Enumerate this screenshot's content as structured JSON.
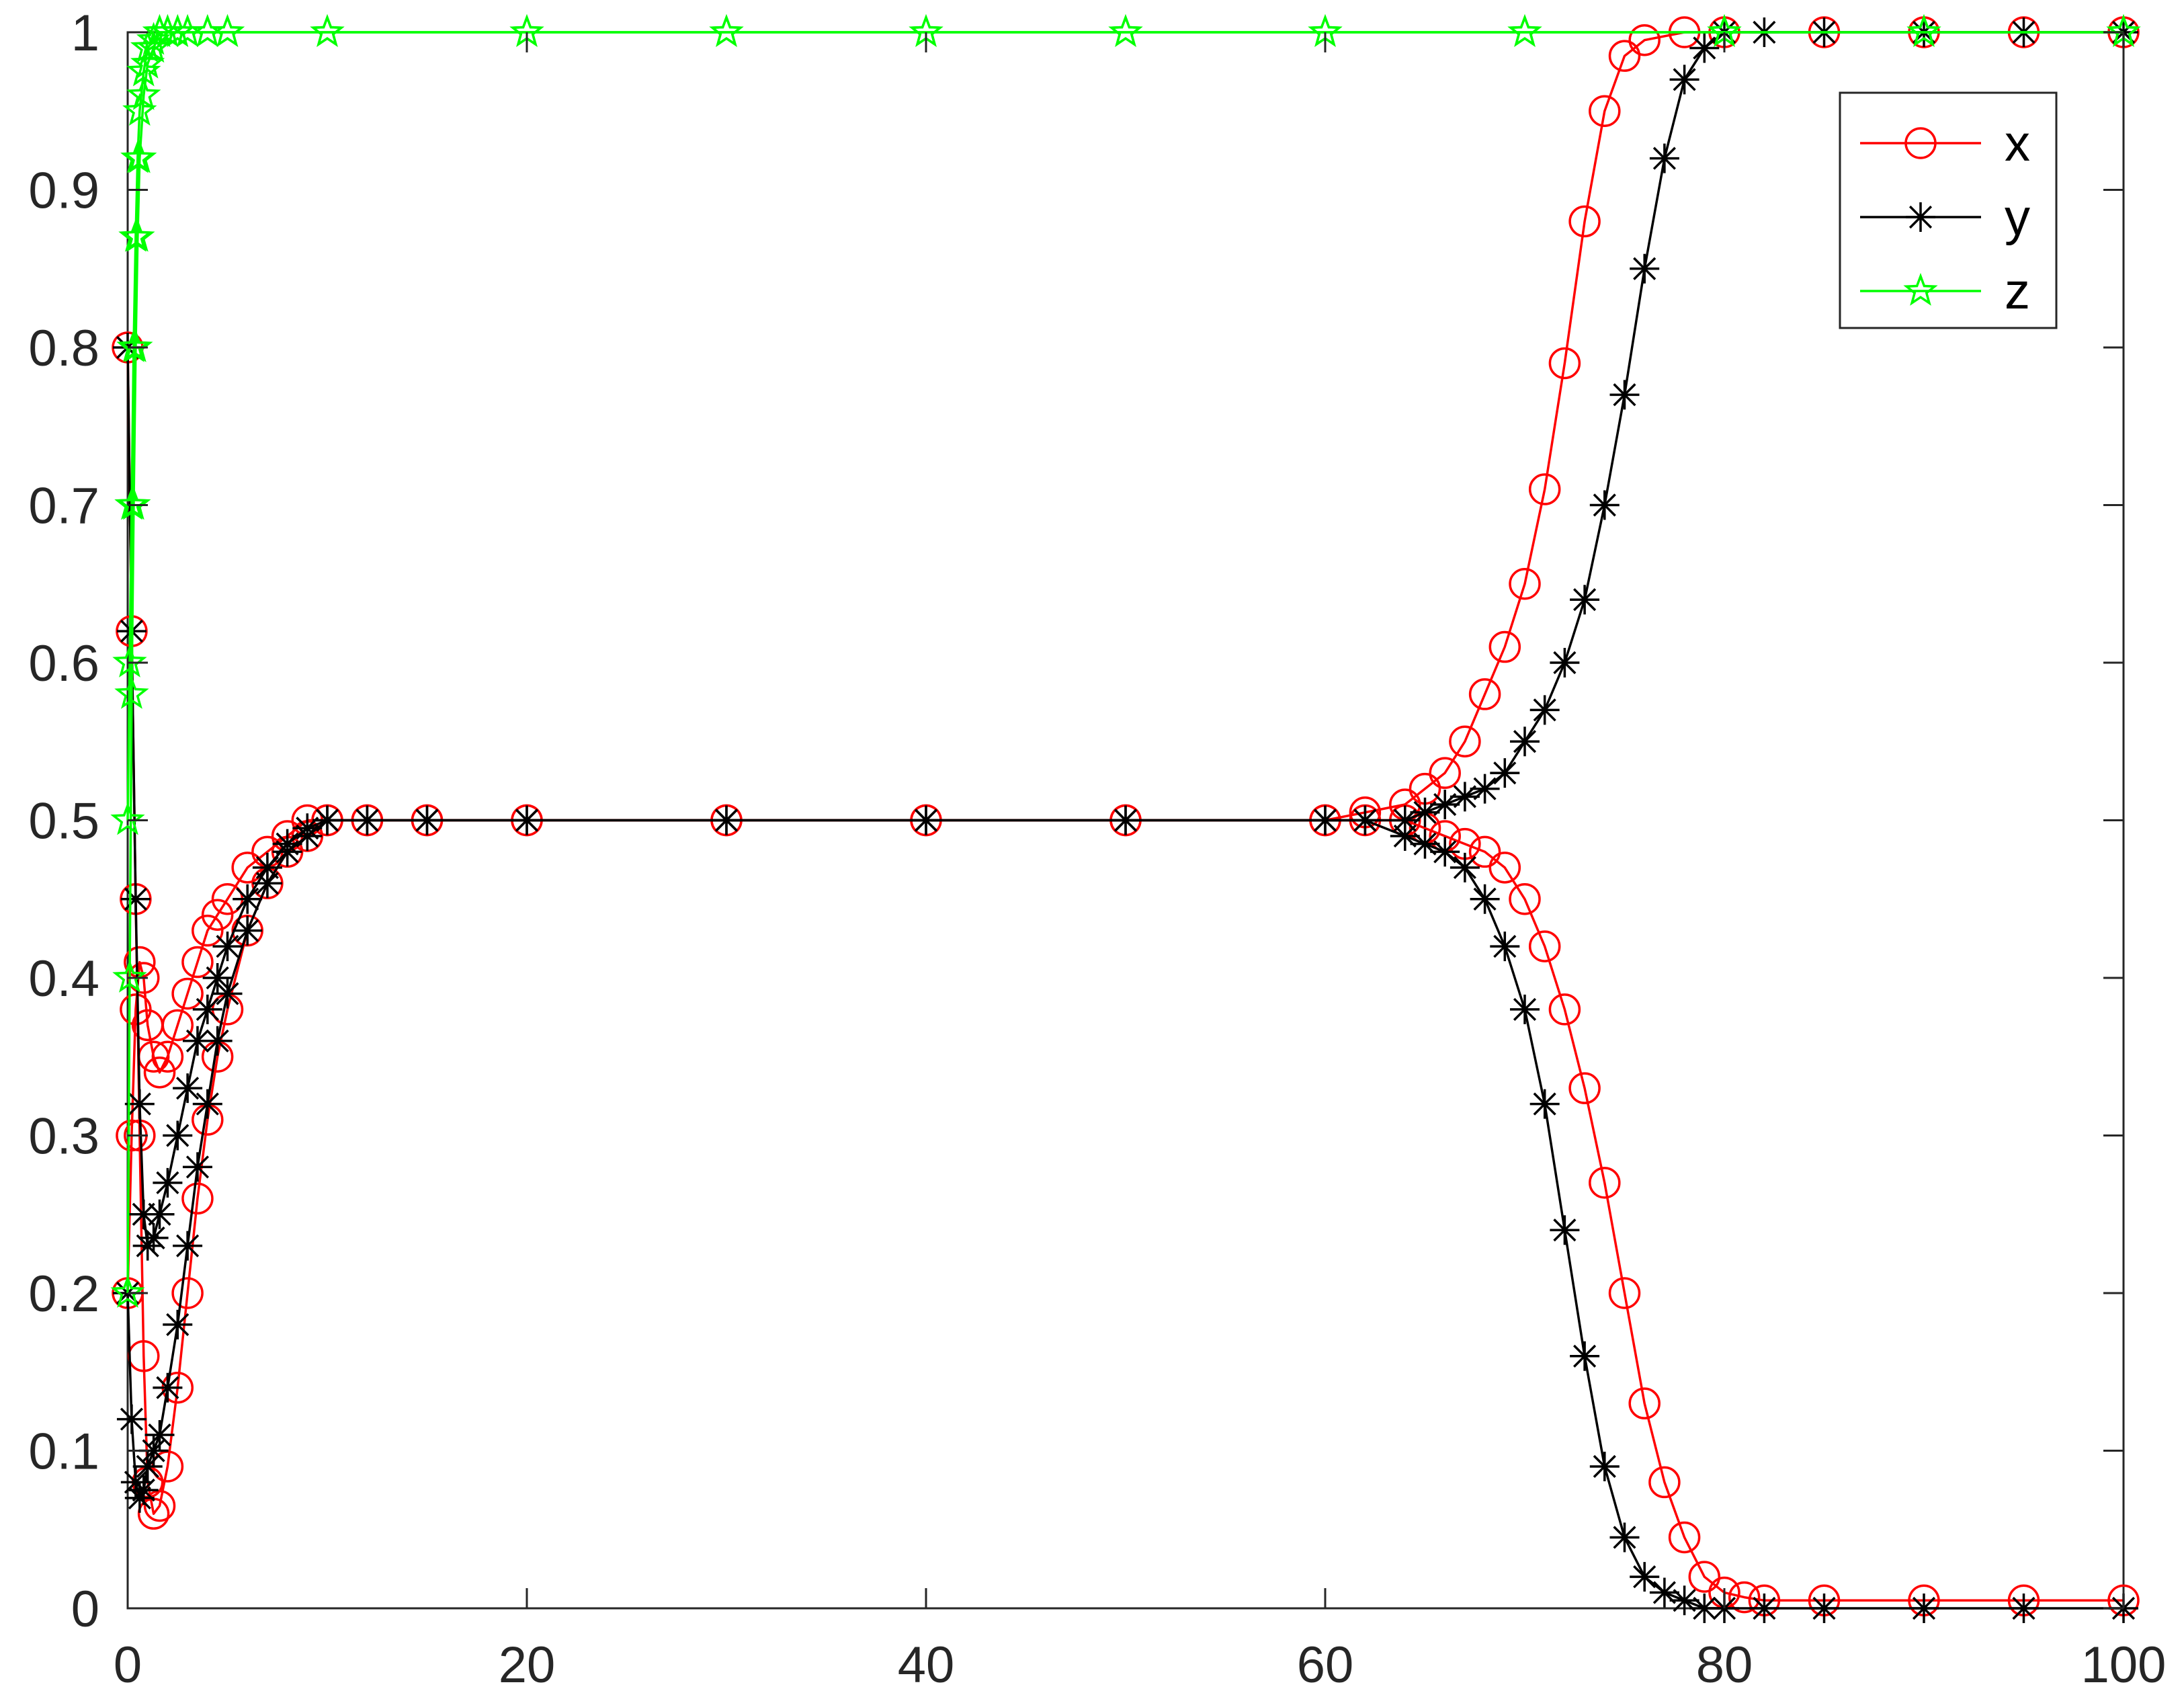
{
  "chart_data": {
    "type": "line",
    "title": "",
    "xlabel": "",
    "ylabel": "",
    "xlim": [
      0,
      100
    ],
    "ylim": [
      0,
      1
    ],
    "xticks": [
      0,
      20,
      40,
      60,
      80,
      100
    ],
    "yticks": [
      0,
      0.1,
      0.2,
      0.3,
      0.4,
      0.5,
      0.6,
      0.7,
      0.8,
      0.9,
      1
    ],
    "grid": false,
    "legend": "top-right",
    "series": [
      {
        "name": "x",
        "color": "#ff0000",
        "marker": "circle",
        "branches": [
          {
            "x": [
              0,
              0.2,
              0.4,
              0.6,
              0.8,
              1,
              1.3,
              1.6,
              2,
              2.5,
              3,
              3.5,
              4,
              4.5,
              5,
              6,
              7,
              8,
              9,
              10,
              12,
              15,
              20,
              30,
              40,
              50,
              60,
              62,
              64,
              65,
              66,
              67,
              68,
              69,
              70,
              71,
              72,
              73,
              74,
              75,
              76,
              78,
              80,
              85,
              90,
              95,
              100
            ],
            "y": [
              0.8,
              0.62,
              0.45,
              0.3,
              0.16,
              0.08,
              0.06,
              0.065,
              0.09,
              0.14,
              0.2,
              0.26,
              0.31,
              0.35,
              0.38,
              0.43,
              0.46,
              0.48,
              0.49,
              0.5,
              0.5,
              0.5,
              0.5,
              0.5,
              0.5,
              0.5,
              0.5,
              0.505,
              0.51,
              0.52,
              0.53,
              0.55,
              0.58,
              0.61,
              0.65,
              0.71,
              0.79,
              0.88,
              0.95,
              0.985,
              0.995,
              1,
              1,
              1,
              1,
              1,
              1
            ]
          },
          {
            "x": [
              0,
              0.2,
              0.4,
              0.6,
              0.8,
              1,
              1.3,
              1.6,
              2,
              2.5,
              3,
              3.5,
              4,
              4.5,
              5,
              6,
              7,
              8,
              9,
              10,
              12,
              15,
              20,
              30,
              40,
              50,
              60,
              62,
              64,
              65,
              66,
              67,
              68,
              69,
              70,
              71,
              72,
              73,
              74,
              75,
              76,
              77,
              78,
              79,
              80,
              81,
              82,
              85,
              90,
              95,
              100
            ],
            "y": [
              0.2,
              0.3,
              0.38,
              0.41,
              0.4,
              0.37,
              0.35,
              0.34,
              0.35,
              0.37,
              0.39,
              0.41,
              0.43,
              0.44,
              0.45,
              0.47,
              0.48,
              0.49,
              0.5,
              0.5,
              0.5,
              0.5,
              0.5,
              0.5,
              0.5,
              0.5,
              0.5,
              0.5,
              0.5,
              0.495,
              0.49,
              0.485,
              0.48,
              0.47,
              0.45,
              0.42,
              0.38,
              0.33,
              0.27,
              0.2,
              0.13,
              0.08,
              0.045,
              0.02,
              0.01,
              0.007,
              0.005,
              0.005,
              0.005,
              0.005,
              0.005
            ]
          }
        ]
      },
      {
        "name": "y",
        "color": "#000000",
        "marker": "asterisk",
        "branches": [
          {
            "x": [
              0,
              0.2,
              0.4,
              0.6,
              0.8,
              1,
              1.3,
              1.6,
              2,
              2.5,
              3,
              3.5,
              4,
              4.5,
              5,
              6,
              7,
              8,
              9,
              10,
              12,
              15,
              20,
              30,
              40,
              50,
              60,
              62,
              64,
              65,
              66,
              67,
              68,
              69,
              70,
              71,
              72,
              73,
              74,
              75,
              76,
              77,
              78,
              79,
              80,
              82,
              85,
              90,
              95,
              100
            ],
            "y": [
              0.8,
              0.62,
              0.45,
              0.32,
              0.25,
              0.23,
              0.235,
              0.25,
              0.27,
              0.3,
              0.33,
              0.36,
              0.38,
              0.4,
              0.42,
              0.45,
              0.47,
              0.485,
              0.495,
              0.5,
              0.5,
              0.5,
              0.5,
              0.5,
              0.5,
              0.5,
              0.5,
              0.5,
              0.5,
              0.505,
              0.51,
              0.515,
              0.52,
              0.53,
              0.55,
              0.57,
              0.6,
              0.64,
              0.7,
              0.77,
              0.85,
              0.92,
              0.97,
              0.99,
              1,
              1,
              1,
              1,
              1,
              1
            ]
          },
          {
            "x": [
              0,
              0.2,
              0.4,
              0.6,
              0.8,
              1,
              1.3,
              1.6,
              2,
              2.5,
              3,
              3.5,
              4,
              4.5,
              5,
              6,
              7,
              8,
              9,
              10,
              12,
              15,
              20,
              30,
              40,
              50,
              60,
              62,
              64,
              65,
              66,
              67,
              68,
              69,
              70,
              71,
              72,
              73,
              74,
              75,
              76,
              77,
              78,
              79,
              80,
              82,
              85,
              90,
              95,
              100
            ],
            "y": [
              0.2,
              0.12,
              0.08,
              0.07,
              0.075,
              0.09,
              0.1,
              0.11,
              0.14,
              0.18,
              0.23,
              0.28,
              0.32,
              0.36,
              0.39,
              0.43,
              0.46,
              0.48,
              0.49,
              0.5,
              0.5,
              0.5,
              0.5,
              0.5,
              0.5,
              0.5,
              0.5,
              0.5,
              0.49,
              0.485,
              0.48,
              0.47,
              0.45,
              0.42,
              0.38,
              0.32,
              0.24,
              0.16,
              0.09,
              0.045,
              0.02,
              0.01,
              0.005,
              0,
              0,
              0,
              0,
              0,
              0,
              0
            ]
          }
        ]
      },
      {
        "name": "z",
        "color": "#00ff00",
        "marker": "pentagram",
        "branches": [
          {
            "x": [
              0,
              0.1,
              0.2,
              0.3,
              0.4,
              0.5,
              0.6,
              0.8,
              1,
              1.3,
              1.6,
              2,
              2.5,
              3,
              4,
              5,
              10,
              20,
              30,
              40,
              50,
              60,
              70,
              80,
              90,
              100
            ],
            "y": [
              0.5,
              0.6,
              0.7,
              0.8,
              0.87,
              0.92,
              0.95,
              0.975,
              0.99,
              0.995,
              1,
              1,
              1,
              1,
              1,
              1,
              1,
              1,
              1,
              1,
              1,
              1,
              1,
              1,
              1,
              1
            ]
          },
          {
            "x": [
              0,
              0.1,
              0.2,
              0.3,
              0.4,
              0.5,
              0.6,
              0.8,
              1,
              1.3,
              1.6,
              2,
              2.5,
              3,
              4,
              5,
              10,
              20,
              30,
              40,
              50,
              60,
              70,
              80,
              90,
              100
            ],
            "y": [
              0.2,
              0.4,
              0.58,
              0.7,
              0.8,
              0.87,
              0.92,
              0.96,
              0.98,
              0.99,
              1,
              1,
              1,
              1,
              1,
              1,
              1,
              1,
              1,
              1,
              1,
              1,
              1,
              1,
              1,
              1
            ]
          }
        ]
      }
    ]
  }
}
